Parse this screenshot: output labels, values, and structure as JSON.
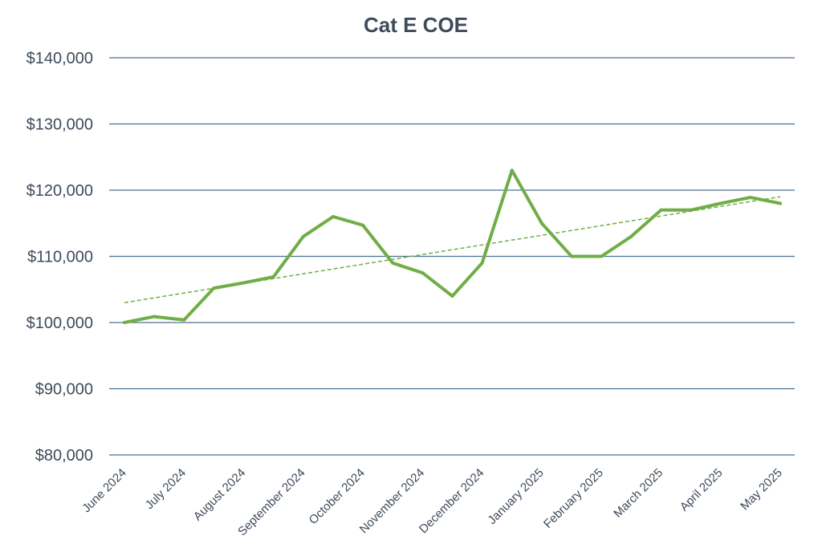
{
  "colors": {
    "title": "#3e4b5b",
    "tick_text": "#3e4b5b",
    "gridline": "#4a6f93",
    "series_line": "#70ad47",
    "trendline": "#70ad47"
  },
  "chart_data": {
    "type": "line",
    "title": "Cat E COE",
    "xlabel": "",
    "ylabel": "",
    "ylim": [
      80000,
      140000
    ],
    "y_ticks": [
      80000,
      90000,
      100000,
      110000,
      120000,
      130000,
      140000
    ],
    "y_tick_labels": [
      "$80,000",
      "$90,000",
      "$100,000",
      "$110,000",
      "$120,000",
      "$130,000",
      "$140,000"
    ],
    "grid": true,
    "legend": "none",
    "categories": [
      "June 2024",
      "July 2024",
      "August 2024",
      "September 2024",
      "October 2024",
      "November 2024",
      "December 2024",
      "January 2025",
      "February 2025",
      "March 2025",
      "April 2025",
      "May 2025"
    ],
    "x": [
      "June 2024",
      "",
      "July 2024",
      "",
      "August 2024",
      "",
      "September 2024",
      "",
      "October 2024",
      "",
      "November 2024",
      "",
      "December 2024",
      "",
      "January 2025",
      "",
      "February 2025",
      "",
      "March 2025",
      "",
      "April 2025",
      "",
      "May 2025"
    ],
    "series": [
      {
        "values": [
          100000,
          100900,
          100400,
          105200,
          106000,
          106900,
          113000,
          116000,
          114700,
          109000,
          107500,
          104000,
          109000,
          123000,
          115000,
          110000,
          110000,
          113000,
          117000,
          117000,
          118000,
          118900,
          118000
        ]
      }
    ],
    "trendline": {
      "type": "linear",
      "style": "dashed",
      "start": 103000,
      "end": 119000
    }
  }
}
